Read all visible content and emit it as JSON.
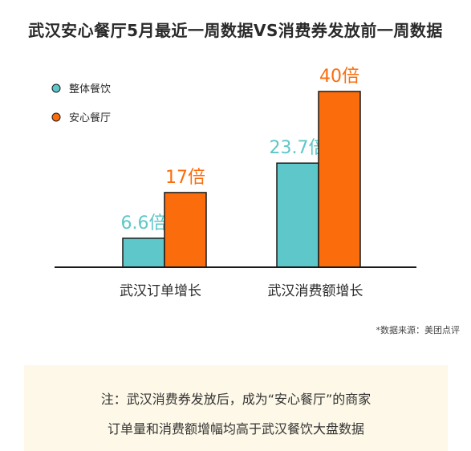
{
  "chart_data": {
    "type": "bar",
    "title": "武汉安心餐厅5月最近一周数据VS消费券发放前一周数据",
    "categories": [
      "武汉订单增长",
      "武汉消费额增长"
    ],
    "series": [
      {
        "name": "整体餐饮",
        "values": [
          6.6,
          23.7
        ],
        "labels": [
          "6.6倍",
          "23.7倍"
        ],
        "color": "#5ec7c9"
      },
      {
        "name": "安心餐厅",
        "values": [
          17,
          40
        ],
        "labels": [
          "17倍",
          "40倍"
        ],
        "color": "#fb6d0c"
      }
    ],
    "ylim": [
      0,
      40
    ],
    "grid": false,
    "legend_position": "top-left",
    "source": "*数据来源：美团点评"
  },
  "note": {
    "line1": "注：武汉消费券发放后，成为“安心餐厅”的商家",
    "line2": "订单量和消费额增幅均高于武汉餐饮大盘数据"
  }
}
